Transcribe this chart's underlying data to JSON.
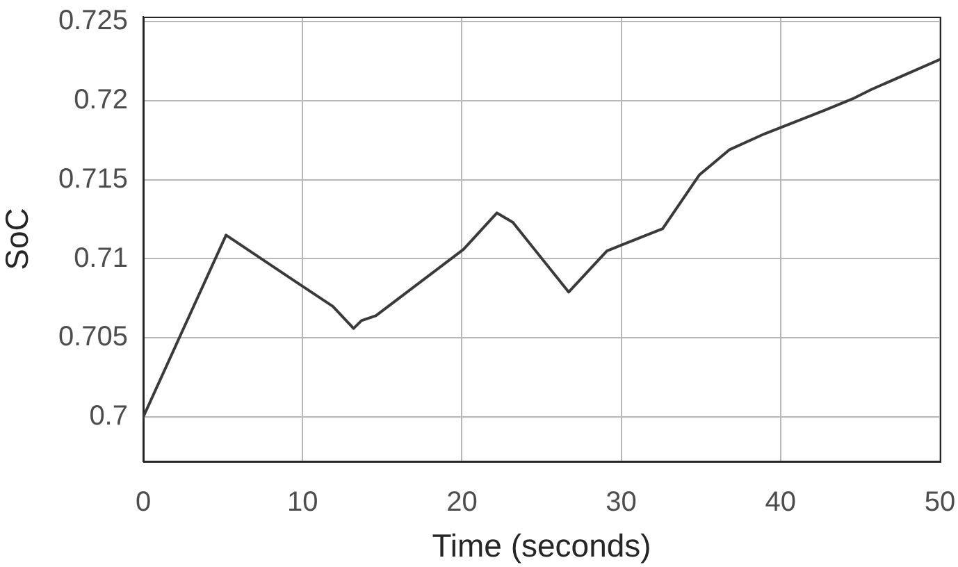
{
  "chart_data": {
    "type": "line",
    "xlabel": "Time (seconds)",
    "ylabel": "SoC",
    "x": [
      0,
      5.2,
      9.5,
      11.9,
      13.2,
      13.7,
      14.6,
      20.1,
      22.2,
      23.2,
      26.7,
      29.1,
      30.1,
      32.6,
      34.9,
      36.8,
      39,
      42.8,
      44.5,
      45.7,
      50
    ],
    "values": [
      0.7,
      0.7115,
      0.7086,
      0.707,
      0.7056,
      0.7061,
      0.7064,
      0.7106,
      0.7129,
      0.7123,
      0.7079,
      0.7105,
      0.7109,
      0.7119,
      0.7153,
      0.7169,
      0.7179,
      0.7194,
      0.7201,
      0.7207,
      0.7226
    ],
    "color": "#3a3a3a",
    "xlim": [
      0,
      50
    ],
    "ylim": [
      0.6972,
      0.7253
    ],
    "xticks": [
      0,
      10,
      20,
      30,
      40,
      50
    ],
    "yticks": [
      0.7,
      0.705,
      0.71,
      0.715,
      0.72,
      0.725
    ],
    "grid": true
  }
}
